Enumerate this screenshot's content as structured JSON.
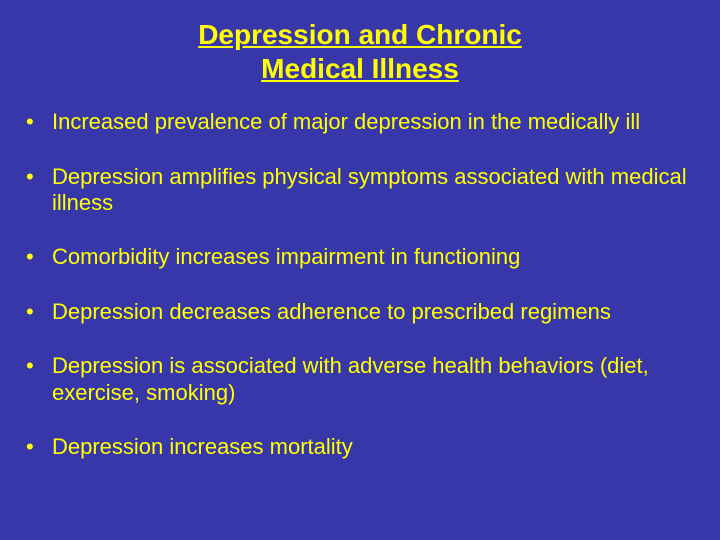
{
  "slide": {
    "background_color": "#3837a9",
    "text_color": "#ffff00",
    "title_lines": [
      "Depression and Chronic",
      "Medical Illness"
    ],
    "title_fontsize": 28,
    "bullet_fontsize": 22,
    "bullet_marker": "•",
    "bullets": [
      "Increased prevalence of major depression in the medically ill",
      "Depression amplifies physical symptoms associated with medical illness",
      "Comorbidity increases impairment in functioning",
      "Depression decreases adherence to prescribed regimens",
      "Depression is associated with adverse health behaviors (diet, exercise, smoking)",
      "Depression increases mortality"
    ]
  }
}
